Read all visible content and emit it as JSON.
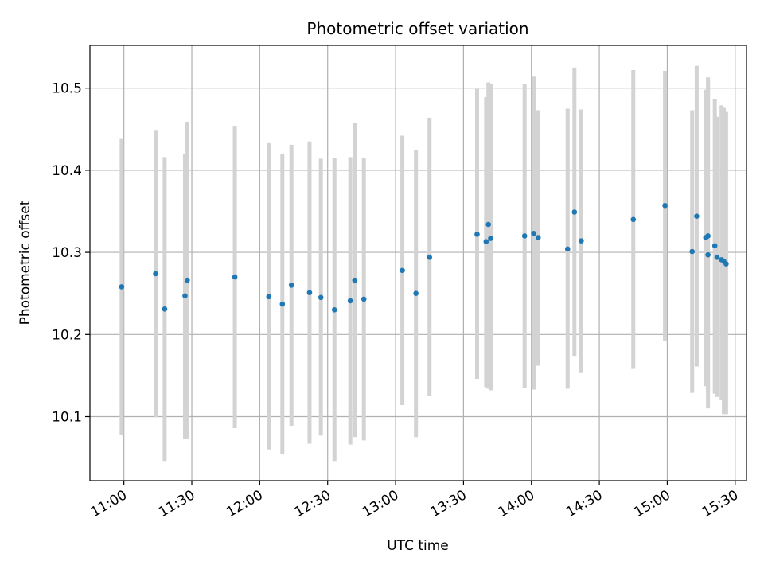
{
  "chart_data": {
    "type": "scatter",
    "title": "Photometric offset variation",
    "xlabel": "UTC time",
    "ylabel": "Photometric offset",
    "x_is_time": true,
    "xlim": [
      "10:45",
      "15:35"
    ],
    "ylim": [
      10.022,
      10.552
    ],
    "x_ticks": [
      "11:00",
      "11:30",
      "12:00",
      "12:30",
      "13:00",
      "13:30",
      "14:00",
      "14:30",
      "15:00",
      "15:30"
    ],
    "y_ticks": [
      10.1,
      10.2,
      10.3,
      10.4,
      10.5
    ],
    "grid": true,
    "colors": {
      "point": "#1f77b4",
      "errorbar": "#d3d3d3",
      "grid": "#b0b0b0"
    },
    "points": [
      {
        "t": "10:59",
        "y": 10.258,
        "lo": 10.078,
        "hi": 10.438
      },
      {
        "t": "11:14",
        "y": 10.274,
        "lo": 10.099,
        "hi": 10.449
      },
      {
        "t": "11:18",
        "y": 10.231,
        "lo": 10.046,
        "hi": 10.416
      },
      {
        "t": "11:27",
        "y": 10.247,
        "lo": 10.073,
        "hi": 10.42
      },
      {
        "t": "11:28",
        "y": 10.266,
        "lo": 10.073,
        "hi": 10.459
      },
      {
        "t": "11:49",
        "y": 10.27,
        "lo": 10.086,
        "hi": 10.454
      },
      {
        "t": "12:04",
        "y": 10.246,
        "lo": 10.06,
        "hi": 10.433
      },
      {
        "t": "12:10",
        "y": 10.237,
        "lo": 10.054,
        "hi": 10.42
      },
      {
        "t": "12:14",
        "y": 10.26,
        "lo": 10.089,
        "hi": 10.431
      },
      {
        "t": "12:22",
        "y": 10.251,
        "lo": 10.067,
        "hi": 10.435
      },
      {
        "t": "12:27",
        "y": 10.245,
        "lo": 10.077,
        "hi": 10.414
      },
      {
        "t": "12:33",
        "y": 10.23,
        "lo": 10.046,
        "hi": 10.415
      },
      {
        "t": "12:40",
        "y": 10.241,
        "lo": 10.066,
        "hi": 10.416
      },
      {
        "t": "12:42",
        "y": 10.266,
        "lo": 10.075,
        "hi": 10.457
      },
      {
        "t": "12:46",
        "y": 10.243,
        "lo": 10.071,
        "hi": 10.415
      },
      {
        "t": "13:03",
        "y": 10.278,
        "lo": 10.114,
        "hi": 10.442
      },
      {
        "t": "13:09",
        "y": 10.25,
        "lo": 10.075,
        "hi": 10.425
      },
      {
        "t": "13:15",
        "y": 10.294,
        "lo": 10.125,
        "hi": 10.464
      },
      {
        "t": "13:36",
        "y": 10.322,
        "lo": 10.146,
        "hi": 10.499
      },
      {
        "t": "13:40",
        "y": 10.313,
        "lo": 10.136,
        "hi": 10.489
      },
      {
        "t": "13:41",
        "y": 10.334,
        "lo": 10.134,
        "hi": 10.507
      },
      {
        "t": "13:42",
        "y": 10.317,
        "lo": 10.132,
        "hi": 10.505
      },
      {
        "t": "13:57",
        "y": 10.32,
        "lo": 10.135,
        "hi": 10.505
      },
      {
        "t": "14:01",
        "y": 10.323,
        "lo": 10.133,
        "hi": 10.514
      },
      {
        "t": "14:03",
        "y": 10.318,
        "lo": 10.162,
        "hi": 10.473
      },
      {
        "t": "14:16",
        "y": 10.304,
        "lo": 10.134,
        "hi": 10.475
      },
      {
        "t": "14:19",
        "y": 10.349,
        "lo": 10.174,
        "hi": 10.525
      },
      {
        "t": "14:22",
        "y": 10.314,
        "lo": 10.153,
        "hi": 10.474
      },
      {
        "t": "14:45",
        "y": 10.34,
        "lo": 10.158,
        "hi": 10.522
      },
      {
        "t": "14:59",
        "y": 10.357,
        "lo": 10.192,
        "hi": 10.521
      },
      {
        "t": "15:11",
        "y": 10.301,
        "lo": 10.129,
        "hi": 10.473
      },
      {
        "t": "15:13",
        "y": 10.344,
        "lo": 10.161,
        "hi": 10.527
      },
      {
        "t": "15:17",
        "y": 10.318,
        "lo": 10.137,
        "hi": 10.498
      },
      {
        "t": "15:18",
        "y": 10.297,
        "lo": 10.11,
        "hi": 10.513
      },
      {
        "t": "15:18",
        "y": 10.32,
        "lo": 10.13,
        "hi": 10.509
      },
      {
        "t": "15:21",
        "y": 10.308,
        "lo": 10.128,
        "hi": 10.487
      },
      {
        "t": "15:22",
        "y": 10.294,
        "lo": 10.124,
        "hi": 10.465
      },
      {
        "t": "15:24",
        "y": 10.291,
        "lo": 10.121,
        "hi": 10.479
      },
      {
        "t": "15:25",
        "y": 10.289,
        "lo": 10.103,
        "hi": 10.476
      },
      {
        "t": "15:26",
        "y": 10.286,
        "lo": 10.103,
        "hi": 10.471
      }
    ]
  }
}
